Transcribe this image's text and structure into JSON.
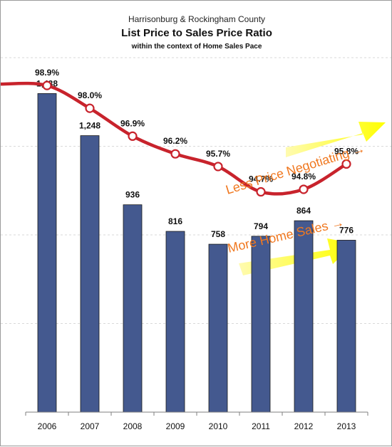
{
  "chart_data": {
    "type": "bar",
    "supertitle": "Harrisonburg & Rockingham County",
    "title": "List Price to Sales Price Ratio",
    "subtitle": "within the context of Home Sales Pace",
    "categories": [
      "2006",
      "2007",
      "2008",
      "2009",
      "2010",
      "2011",
      "2012",
      "2013"
    ],
    "series": [
      {
        "type": "bar",
        "values": [
          1438,
          1248,
          936,
          816,
          758,
          794,
          864,
          776
        ],
        "labels": [
          "1,438",
          "1,248",
          "936",
          "816",
          "758",
          "794",
          "864",
          "776"
        ],
        "color": "#44598f"
      },
      {
        "type": "line",
        "values": [
          98.9,
          98.0,
          96.9,
          96.2,
          95.7,
          94.7,
          94.8,
          95.8
        ],
        "labels": [
          "98.9%",
          "98.0%",
          "96.9%",
          "96.2%",
          "95.7%",
          "94.7%",
          "94.8%",
          "95.8%"
        ],
        "color": "#c8232c"
      }
    ],
    "point_labels_shown": [
      true,
      true,
      true,
      true,
      true,
      true,
      true,
      true
    ],
    "bar_ylim": [
      0,
      1600
    ],
    "line_ylim": [
      86,
      100
    ],
    "grid": true,
    "annotations": [
      {
        "text": "Less Price Negotiating →",
        "color": "#f07820",
        "arrow_color": "#ffff00"
      },
      {
        "text": "More Home Sales →",
        "color": "#f07820",
        "arrow_color": "#ffff00"
      }
    ]
  }
}
